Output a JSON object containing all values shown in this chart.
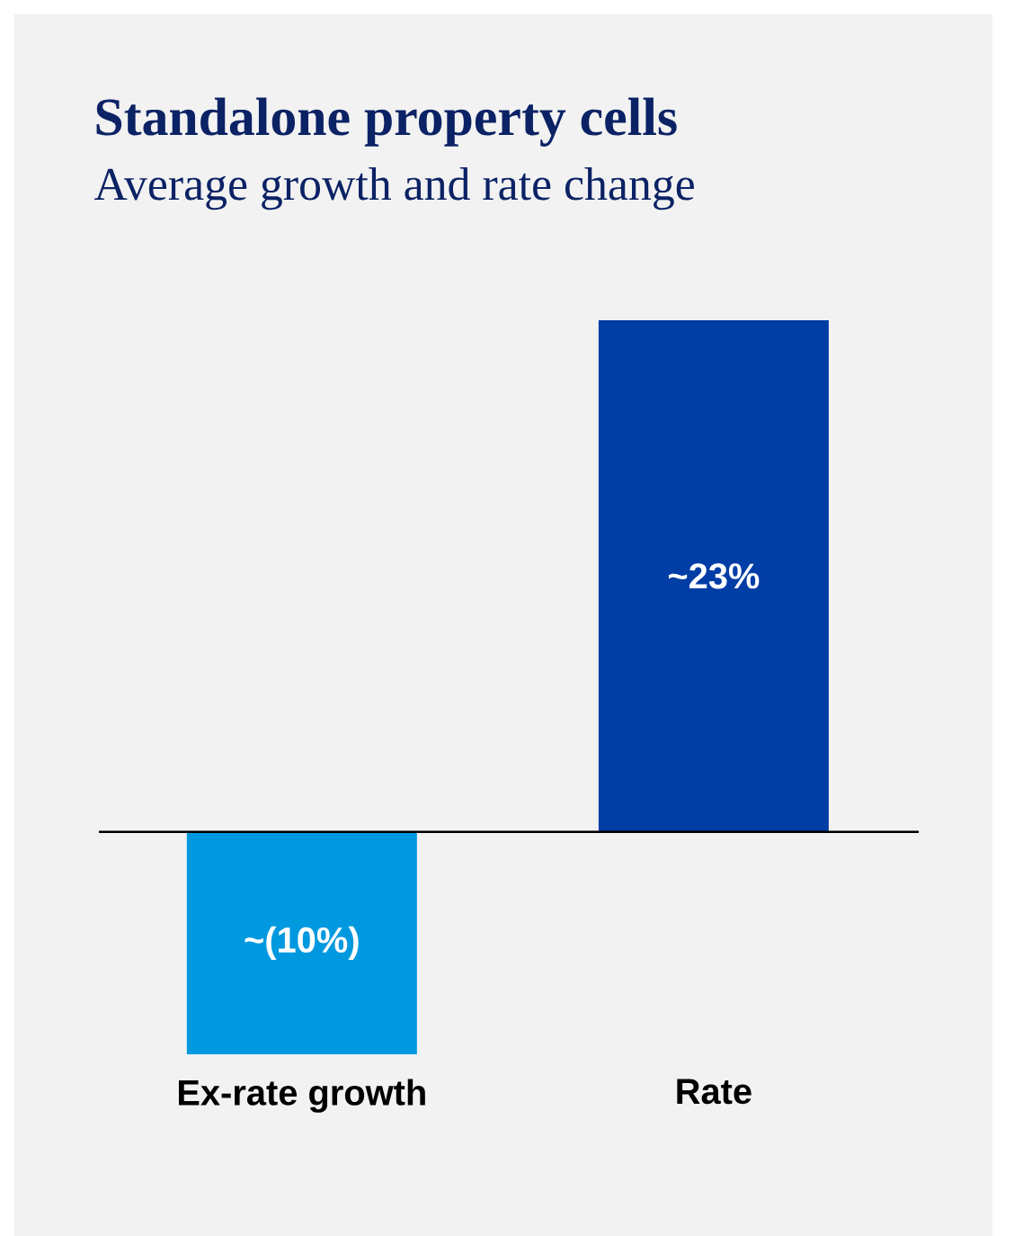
{
  "chart_data": {
    "type": "bar",
    "title": "Standalone property cells",
    "subtitle": "Average growth and rate change",
    "categories": [
      "Ex-rate growth",
      "Rate"
    ],
    "values": [
      -10,
      23
    ],
    "colors": [
      "#0099df",
      "#003da5"
    ],
    "value_labels": [
      "~(10%)",
      "~23%"
    ]
  }
}
